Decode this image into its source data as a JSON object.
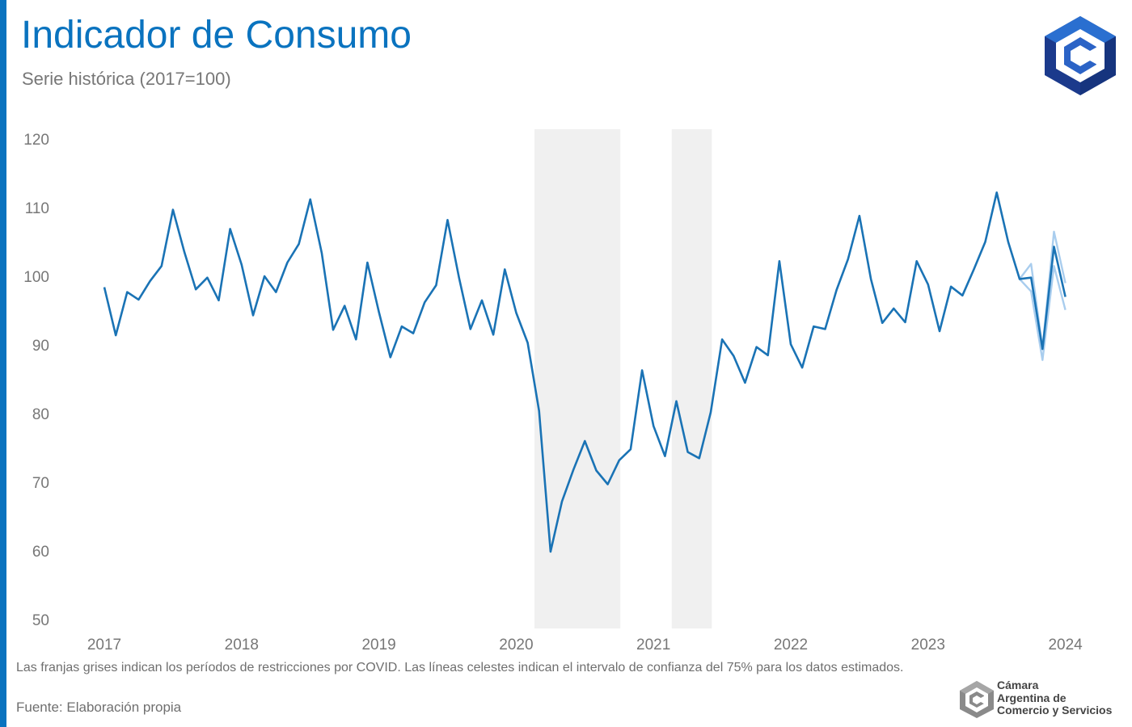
{
  "header": {
    "title": "Indicador de Consumo",
    "subtitle": "Serie histórica (2017=100)"
  },
  "footer": {
    "note": "Las franjas grises indican los períodos de restricciones por COVID. Las líneas celestes indican el intervalo de confianza del 75% para los datos estimados.",
    "source": "Fuente: Elaboración propia",
    "org_lines": [
      "Cámara",
      "Argentina de",
      "Comercio y Servicios"
    ]
  },
  "icons": {
    "top_logo": "cac-hexagon-logo",
    "bottom_logo": "cac-hexagon-logo-gray"
  },
  "colors": {
    "accent": "#0a73bf",
    "main_line": "#1a73b5",
    "confidence_band": "#a9cdee",
    "covid_band": "#f0f0f0",
    "axis_text": "#777777"
  },
  "chart_data": {
    "type": "line",
    "title": "Indicador de Consumo",
    "subtitle": "Serie histórica (2017=100)",
    "ylim": [
      50,
      120
    ],
    "yticks": [
      50,
      60,
      70,
      80,
      90,
      100,
      110,
      120
    ],
    "xticks": [
      "2017",
      "2018",
      "2019",
      "2020",
      "2021",
      "2022",
      "2023",
      "2024"
    ],
    "grid": false,
    "legend": "none",
    "x_start": "2017-01",
    "frequency": "monthly",
    "series": [
      {
        "role": "main",
        "values": [
          98.4,
          91.4,
          97.7,
          96.6,
          99.3,
          101.5,
          109.7,
          103.5,
          98.1,
          99.8,
          96.5,
          106.9,
          101.7,
          94.3,
          100.0,
          97.7,
          102.0,
          104.7,
          111.2,
          103.4,
          92.2,
          95.7,
          90.8,
          102.0,
          94.8,
          88.2,
          92.7,
          91.7,
          96.2,
          98.7,
          108.2,
          99.8,
          92.3,
          96.5,
          91.5,
          101.0,
          94.7,
          90.3,
          80.4,
          59.9,
          67.2,
          71.8,
          76.0,
          71.7,
          69.7,
          73.2,
          74.8,
          86.3,
          78.2,
          73.8,
          81.8,
          74.4,
          73.5,
          80.2,
          90.8,
          88.4,
          84.5,
          89.7,
          88.5,
          102.2,
          90.1,
          86.7,
          92.7,
          92.3,
          98.0,
          102.5,
          108.8,
          99.6,
          93.2,
          95.3,
          93.3,
          102.2,
          98.8,
          92.0,
          98.5,
          97.2,
          101.0,
          105.0,
          112.2,
          105.0,
          99.6,
          99.8,
          89.4,
          104.3,
          97.0
        ]
      },
      {
        "role": "confidence_upper",
        "x_start_index": 80,
        "values": [
          99.6,
          101.8,
          89.5,
          106.5,
          99.0
        ]
      },
      {
        "role": "confidence_lower",
        "x_start_index": 80,
        "values": [
          99.6,
          97.8,
          87.8,
          101.5,
          95.1
        ]
      }
    ],
    "shaded_periods": [
      {
        "label": "COVID",
        "start": "2020-03",
        "end": "2020-10"
      },
      {
        "label": "COVID",
        "start": "2021-03",
        "end": "2021-06"
      }
    ]
  }
}
